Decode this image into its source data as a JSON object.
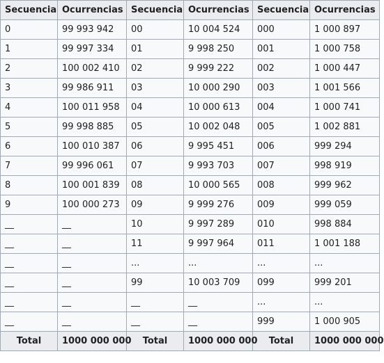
{
  "headers": [
    "Secuencia",
    "Ocurrencias",
    "Secuencia",
    "Ocurrencias",
    "Secuencia",
    "Ocurrencias"
  ],
  "rows": [
    [
      "0",
      "99 993 942",
      "00",
      "10 004 524",
      "000",
      "1 000 897"
    ],
    [
      "1",
      "99 997 334",
      "01",
      "9 998 250",
      "001",
      "1 000 758"
    ],
    [
      "2",
      "100 002 410",
      "02",
      "9 999 222",
      "002",
      "1 000 447"
    ],
    [
      "3",
      "99 986 911",
      "03",
      "10 000 290",
      "003",
      "1 001 566"
    ],
    [
      "4",
      "100 011 958",
      "04",
      "10 000 613",
      "004",
      "1 000 741"
    ],
    [
      "5",
      "99 998 885",
      "05",
      "10 002 048",
      "005",
      "1 002 881"
    ],
    [
      "6",
      "100 010 387",
      "06",
      "9 995 451",
      "006",
      "999 294"
    ],
    [
      "7",
      "99 996 061",
      "07",
      "9 993 703",
      "007",
      "998 919"
    ],
    [
      "8",
      "100 001 839",
      "08",
      "10 000 565",
      "008",
      "999 962"
    ],
    [
      "9",
      "100 000 273",
      "09",
      "9 999 276",
      "009",
      "999 059"
    ],
    [
      "__",
      "__",
      "10",
      "9 997 289",
      "010",
      "998 884"
    ],
    [
      "__",
      "__",
      "11",
      "9 997 964",
      "011",
      "1 001 188"
    ],
    [
      "__",
      "__",
      "...",
      "...",
      "...",
      "..."
    ],
    [
      "__",
      "__",
      "99",
      "10 003 709",
      "099",
      "999 201"
    ],
    [
      "__",
      "__",
      "__",
      "__",
      "...",
      "..."
    ],
    [
      "__",
      "__",
      "__",
      "__",
      "999",
      "1 000 905"
    ]
  ],
  "footer": [
    "Total",
    "1000 000 000",
    "Total",
    "1000 000 000",
    "Total",
    "1000 000 000"
  ]
}
